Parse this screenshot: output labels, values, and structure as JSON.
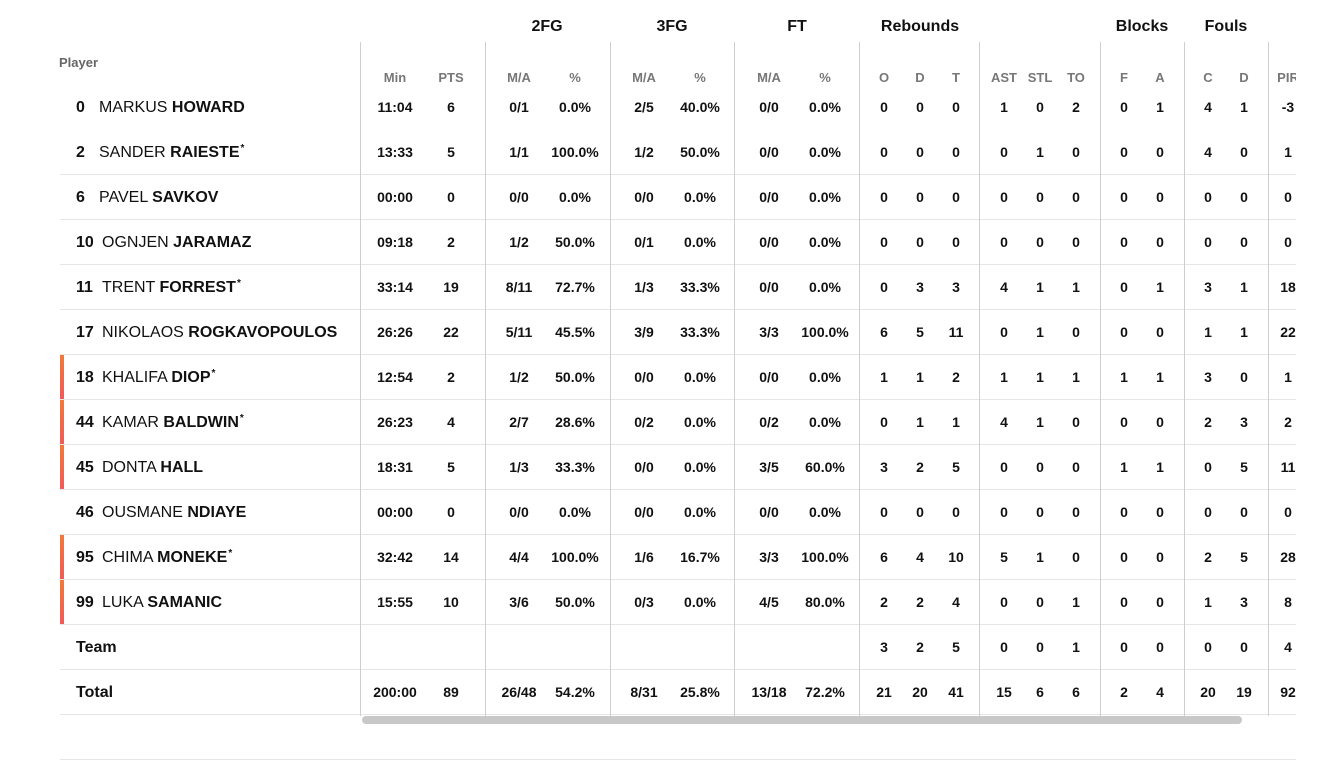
{
  "header": {
    "player": "Player",
    "groups": [
      "2FG",
      "3FG",
      "FT",
      "Rebounds",
      "Blocks",
      "Fouls"
    ],
    "columns": [
      "Min",
      "PTS",
      "M/A",
      "%",
      "M/A",
      "%",
      "M/A",
      "%",
      "O",
      "D",
      "T",
      "AST",
      "STL",
      "TO",
      "F",
      "A",
      "C",
      "D",
      "PIR"
    ]
  },
  "rows": [
    {
      "num": "0",
      "first": "MARKUS",
      "last": "HOWARD",
      "starter": false,
      "accent": false,
      "stats": [
        "11:04",
        "6",
        "0/1",
        "0.0%",
        "2/5",
        "40.0%",
        "0/0",
        "0.0%",
        "0",
        "0",
        "0",
        "1",
        "0",
        "2",
        "0",
        "1",
        "4",
        "1",
        "-3"
      ]
    },
    {
      "num": "2",
      "first": "SANDER",
      "last": "RAIESTE",
      "starter": true,
      "accent": false,
      "stats": [
        "13:33",
        "5",
        "1/1",
        "100.0%",
        "1/2",
        "50.0%",
        "0/0",
        "0.0%",
        "0",
        "0",
        "0",
        "0",
        "1",
        "0",
        "0",
        "0",
        "4",
        "0",
        "1"
      ]
    },
    {
      "num": "6",
      "first": "PAVEL",
      "last": "SAVKOV",
      "starter": false,
      "accent": false,
      "stats": [
        "00:00",
        "0",
        "0/0",
        "0.0%",
        "0/0",
        "0.0%",
        "0/0",
        "0.0%",
        "0",
        "0",
        "0",
        "0",
        "0",
        "0",
        "0",
        "0",
        "0",
        "0",
        "0"
      ]
    },
    {
      "num": "10",
      "first": "OGNJEN",
      "last": "JARAMAZ",
      "starter": false,
      "accent": false,
      "stats": [
        "09:18",
        "2",
        "1/2",
        "50.0%",
        "0/1",
        "0.0%",
        "0/0",
        "0.0%",
        "0",
        "0",
        "0",
        "0",
        "0",
        "0",
        "0",
        "0",
        "0",
        "0",
        "0"
      ]
    },
    {
      "num": "11",
      "first": "TRENT",
      "last": "FORREST",
      "starter": true,
      "accent": false,
      "stats": [
        "33:14",
        "19",
        "8/11",
        "72.7%",
        "1/3",
        "33.3%",
        "0/0",
        "0.0%",
        "0",
        "3",
        "3",
        "4",
        "1",
        "1",
        "0",
        "1",
        "3",
        "1",
        "18"
      ]
    },
    {
      "num": "17",
      "first": "NIKOLAOS",
      "last": "ROGKAVOPOULOS",
      "starter": false,
      "accent": false,
      "stats": [
        "26:26",
        "22",
        "5/11",
        "45.5%",
        "3/9",
        "33.3%",
        "3/3",
        "100.0%",
        "6",
        "5",
        "11",
        "0",
        "1",
        "0",
        "0",
        "0",
        "1",
        "1",
        "22"
      ]
    },
    {
      "num": "18",
      "first": "KHALIFA",
      "last": "DIOP",
      "starter": true,
      "accent": true,
      "stats": [
        "12:54",
        "2",
        "1/2",
        "50.0%",
        "0/0",
        "0.0%",
        "0/0",
        "0.0%",
        "1",
        "1",
        "2",
        "1",
        "1",
        "1",
        "1",
        "1",
        "3",
        "0",
        "1"
      ]
    },
    {
      "num": "44",
      "first": "KAMAR",
      "last": "BALDWIN",
      "starter": true,
      "accent": true,
      "stats": [
        "26:23",
        "4",
        "2/7",
        "28.6%",
        "0/2",
        "0.0%",
        "0/2",
        "0.0%",
        "0",
        "1",
        "1",
        "4",
        "1",
        "0",
        "0",
        "0",
        "2",
        "3",
        "2"
      ]
    },
    {
      "num": "45",
      "first": "DONTA",
      "last": "HALL",
      "starter": false,
      "accent": true,
      "stats": [
        "18:31",
        "5",
        "1/3",
        "33.3%",
        "0/0",
        "0.0%",
        "3/5",
        "60.0%",
        "3",
        "2",
        "5",
        "0",
        "0",
        "0",
        "1",
        "1",
        "0",
        "5",
        "11"
      ]
    },
    {
      "num": "46",
      "first": "OUSMANE",
      "last": "NDIAYE",
      "starter": false,
      "accent": false,
      "stats": [
        "00:00",
        "0",
        "0/0",
        "0.0%",
        "0/0",
        "0.0%",
        "0/0",
        "0.0%",
        "0",
        "0",
        "0",
        "0",
        "0",
        "0",
        "0",
        "0",
        "0",
        "0",
        "0"
      ]
    },
    {
      "num": "95",
      "first": "CHIMA",
      "last": "MONEKE",
      "starter": true,
      "accent": true,
      "stats": [
        "32:42",
        "14",
        "4/4",
        "100.0%",
        "1/6",
        "16.7%",
        "3/3",
        "100.0%",
        "6",
        "4",
        "10",
        "5",
        "1",
        "0",
        "0",
        "0",
        "2",
        "5",
        "28"
      ]
    },
    {
      "num": "99",
      "first": "LUKA",
      "last": "SAMANIC",
      "starter": false,
      "accent": true,
      "stats": [
        "15:55",
        "10",
        "3/6",
        "50.0%",
        "0/3",
        "0.0%",
        "4/5",
        "80.0%",
        "2",
        "2",
        "4",
        "0",
        "0",
        "1",
        "0",
        "0",
        "1",
        "3",
        "8"
      ]
    }
  ],
  "team": {
    "label": "Team",
    "stats": [
      "",
      "",
      "",
      "",
      "",
      "",
      "",
      "",
      "3",
      "2",
      "5",
      "0",
      "0",
      "1",
      "0",
      "0",
      "0",
      "0",
      "4"
    ]
  },
  "total": {
    "label": "Total",
    "stats": [
      "200:00",
      "89",
      "26/48",
      "54.2%",
      "8/31",
      "25.8%",
      "13/18",
      "72.2%",
      "21",
      "20",
      "41",
      "15",
      "6",
      "6",
      "2",
      "4",
      "20",
      "19",
      "92"
    ]
  },
  "colors": {
    "accent": "#f07a3a",
    "accent2": "#f05a5a",
    "grid": "#e6e6e6",
    "header_text": "#777777"
  }
}
